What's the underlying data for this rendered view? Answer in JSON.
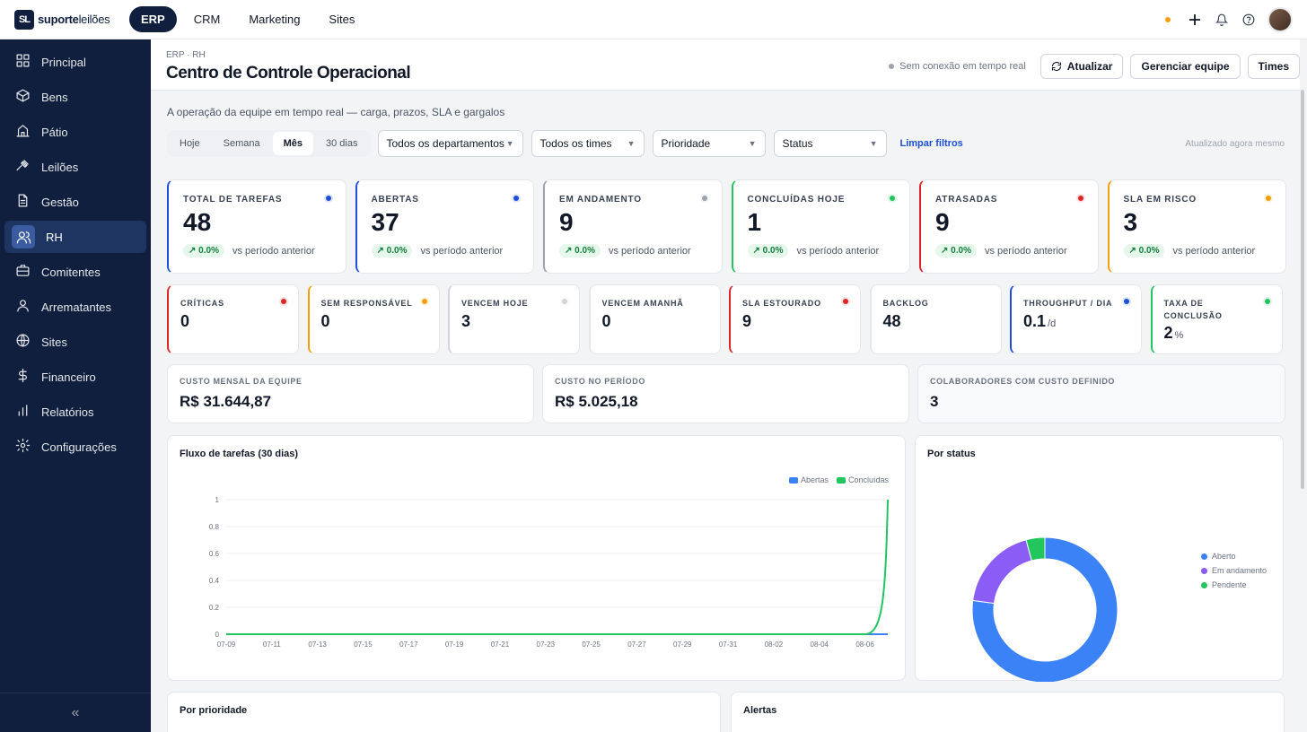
{
  "brand": {
    "mark": "SL",
    "name_bold": "suporte",
    "name_light": "leilões"
  },
  "topnav": [
    {
      "label": "ERP",
      "active": true
    },
    {
      "label": "CRM",
      "active": false
    },
    {
      "label": "Marketing",
      "active": false
    },
    {
      "label": "Sites",
      "active": false
    }
  ],
  "sidebar": {
    "items": [
      {
        "label": "Principal",
        "icon": "grid-icon"
      },
      {
        "label": "Bens",
        "icon": "box-icon"
      },
      {
        "label": "Pátio",
        "icon": "building-icon"
      },
      {
        "label": "Leilões",
        "icon": "gavel-icon"
      },
      {
        "label": "Gestão",
        "icon": "document-icon"
      },
      {
        "label": "RH",
        "icon": "users-icon",
        "active": true
      },
      {
        "label": "Comitentes",
        "icon": "briefcase-icon"
      },
      {
        "label": "Arrematantes",
        "icon": "user-icon"
      },
      {
        "label": "Sites",
        "icon": "globe-icon"
      },
      {
        "label": "Financeiro",
        "icon": "dollar-icon"
      },
      {
        "label": "Relatórios",
        "icon": "bar-chart-icon"
      },
      {
        "label": "Configurações",
        "icon": "gear-icon"
      }
    ],
    "collapse_label": "«"
  },
  "header": {
    "breadcrumb": "ERP · RH",
    "title": "Centro de Controle Operacional",
    "realtime_status": "Sem conexão em tempo real",
    "refresh_label": "Atualizar",
    "manage_label": "Gerenciar equipe",
    "teams_label": "Times"
  },
  "subtitle": "A operação da equipe em tempo real — carga, prazos, SLA e gargalos",
  "filters": {
    "periods": [
      {
        "label": "Hoje",
        "active": false
      },
      {
        "label": "Semana",
        "active": false
      },
      {
        "label": "Mês",
        "active": true
      },
      {
        "label": "30 dias",
        "active": false
      }
    ],
    "department": "Todos os departamentos",
    "team": "Todos os times",
    "priority": "Prioridade",
    "status": "Status",
    "clear_label": "Limpar filtros",
    "updated": "Atualizado agora mesmo"
  },
  "kpis": [
    {
      "label": "TOTAL DE TAREFAS",
      "value": "48",
      "delta": "0.0%",
      "compare": "vs período anterior",
      "color": "#1d4ed8"
    },
    {
      "label": "ABERTAS",
      "value": "37",
      "delta": "0.0%",
      "compare": "vs período anterior",
      "color": "#1d4ed8"
    },
    {
      "label": "EM ANDAMENTO",
      "value": "9",
      "delta": "0.0%",
      "compare": "vs período anterior",
      "color": "#9ca3af"
    },
    {
      "label": "CONCLUÍDAS HOJE",
      "value": "1",
      "delta": "0.0%",
      "compare": "vs período anterior",
      "color": "#22c55e"
    },
    {
      "label": "ATRASADAS",
      "value": "9",
      "delta": "0.0%",
      "compare": "vs período anterior",
      "color": "#dc2626"
    },
    {
      "label": "SLA EM RISCO",
      "value": "3",
      "delta": "0.0%",
      "compare": "vs período anterior",
      "color": "#f59e0b"
    }
  ],
  "kpis_small": [
    {
      "label": "CRÍTICAS",
      "value": "0",
      "unit": "",
      "color": "#dc2626"
    },
    {
      "label": "SEM RESPONSÁVEL",
      "value": "0",
      "unit": "",
      "color": "#f59e0b"
    },
    {
      "label": "VENCEM HOJE",
      "value": "3",
      "unit": "",
      "color": "#d1d5db"
    },
    {
      "label": "VENCEM AMANHÃ",
      "value": "0",
      "unit": "",
      "color": ""
    },
    {
      "label": "SLA ESTOURADO",
      "value": "9",
      "unit": "",
      "color": "#dc2626"
    },
    {
      "label": "BACKLOG",
      "value": "48",
      "unit": "",
      "color": ""
    },
    {
      "label": "THROUGHPUT / DIA",
      "value": "0.1",
      "unit": "/d",
      "color": "#1d4ed8"
    },
    {
      "label": "TAXA DE CONCLUSÃO",
      "value": "2",
      "unit": "%",
      "color": "#22c55e"
    }
  ],
  "costs": [
    {
      "label": "CUSTO MENSAL DA EQUIPE",
      "value": "R$ 31.644,87"
    },
    {
      "label": "CUSTO NO PERÍODO",
      "value": "R$ 5.025,18"
    },
    {
      "label": "COLABORADORES COM CUSTO DEFINIDO",
      "value": "3"
    }
  ],
  "flow_panel": {
    "title": "Fluxo de tarefas (30 dias)"
  },
  "status_panel": {
    "title": "Por status"
  },
  "priority_panel": {
    "title": "Por prioridade"
  },
  "alerts_panel": {
    "title": "Alertas"
  },
  "chart_data": [
    {
      "type": "line",
      "x": [
        "07-09",
        "07-10",
        "07-11",
        "07-12",
        "07-13",
        "07-14",
        "07-15",
        "07-16",
        "07-17",
        "07-18",
        "07-19",
        "07-20",
        "07-21",
        "07-22",
        "07-23",
        "07-24",
        "07-25",
        "07-26",
        "07-27",
        "07-28",
        "07-29",
        "07-30",
        "07-31",
        "08-01",
        "08-02",
        "08-03",
        "08-04",
        "08-05",
        "08-06",
        "08-07"
      ],
      "x_tick_labels": [
        "07-09",
        "07-11",
        "07-13",
        "07-15",
        "07-17",
        "07-19",
        "07-21",
        "07-23",
        "07-25",
        "07-27",
        "07-29",
        "07-31",
        "08-02",
        "08-04",
        "08-06"
      ],
      "series": [
        {
          "name": "Abertas",
          "color": "#3b82f6",
          "values": [
            0,
            0,
            0,
            0,
            0,
            0,
            0,
            0,
            0,
            0,
            0,
            0,
            0,
            0,
            0,
            0,
            0,
            0,
            0,
            0,
            0,
            0,
            0,
            0,
            0,
            0,
            0,
            0,
            0,
            0
          ]
        },
        {
          "name": "Concluídas",
          "color": "#22c55e",
          "values": [
            0,
            0,
            0,
            0,
            0,
            0,
            0,
            0,
            0,
            0,
            0,
            0,
            0,
            0,
            0,
            0,
            0,
            0,
            0,
            0,
            0,
            0,
            0,
            0,
            0,
            0,
            0,
            0,
            0,
            1
          ]
        }
      ],
      "ylim": [
        0,
        1
      ],
      "y_ticks": [
        "0",
        "0.2",
        "0.4",
        "0.6",
        "0.8",
        "1"
      ],
      "legend": "top-right",
      "grid": true
    },
    {
      "type": "pie",
      "donut": true,
      "categories": [
        "Aberto",
        "Em andamento",
        "Pendente"
      ],
      "values": [
        37,
        9,
        2
      ],
      "colors": [
        "#3b82f6",
        "#8b5cf6",
        "#22c55e"
      ],
      "legend": "right"
    }
  ]
}
